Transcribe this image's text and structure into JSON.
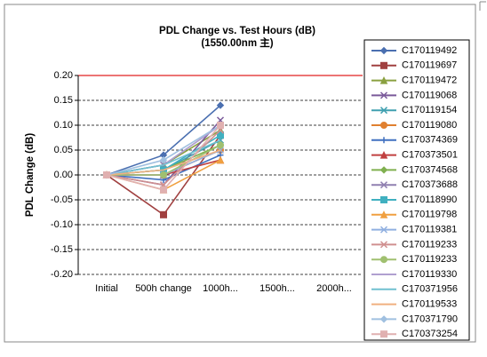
{
  "chart_data": {
    "type": "line",
    "title": "PDL Change vs.  Test Hours (dB)",
    "subtitle": "(1550.00nm 主)",
    "y_label": "PDL  Change (dB)",
    "categories": [
      "Initial",
      "500h change",
      "1000h...",
      "1500h...",
      "2000h..."
    ],
    "ylim": [
      -0.2,
      0.2
    ],
    "yticks": [
      {
        "value": 0.2,
        "label": "0.20"
      },
      {
        "value": 0.15,
        "label": "0.15"
      },
      {
        "value": 0.1,
        "label": "0.10"
      },
      {
        "value": 0.05,
        "label": "0.05"
      },
      {
        "value": 0,
        "label": "0.00"
      },
      {
        "value": -0.05,
        "label": "-0.05"
      },
      {
        "value": -0.1,
        "label": "-0.10"
      },
      {
        "value": -0.15,
        "label": "-0.15"
      },
      {
        "value": -0.2,
        "label": "-0.20"
      }
    ],
    "grid": true,
    "legend": "right",
    "series": [
      {
        "name": "C170119492",
        "color": "#4a6fb0",
        "marker": "diamond",
        "values": [
          0,
          0.04,
          0.14,
          null,
          null
        ]
      },
      {
        "name": "C170119697",
        "color": "#a04040",
        "marker": "square",
        "values": [
          0,
          -0.08,
          0.08,
          null,
          null
        ]
      },
      {
        "name": "C170119472",
        "color": "#8aa040",
        "marker": "triangle",
        "values": [
          0,
          0.02,
          0.09,
          null,
          null
        ]
      },
      {
        "name": "C170119068",
        "color": "#7a5a9a",
        "marker": "x",
        "values": [
          0,
          -0.02,
          0.11,
          null,
          null
        ]
      },
      {
        "name": "C170119154",
        "color": "#40a0b0",
        "marker": "x",
        "values": [
          0,
          0.01,
          0.07,
          null,
          null
        ]
      },
      {
        "name": "C170119080",
        "color": "#e08030",
        "marker": "circle",
        "values": [
          0,
          0,
          0.05,
          null,
          null
        ]
      },
      {
        "name": "C170374369",
        "color": "#4070c0",
        "marker": "plus",
        "values": [
          0,
          -0.01,
          0.04,
          null,
          null
        ]
      },
      {
        "name": "C170373501",
        "color": "#c04040",
        "marker": "triangle",
        "values": [
          0,
          0,
          0.03,
          null,
          null
        ]
      },
      {
        "name": "C170374568",
        "color": "#80b050",
        "marker": "diamond",
        "values": [
          0,
          0.01,
          0.06,
          null,
          null
        ]
      },
      {
        "name": "C170373688",
        "color": "#9080b0",
        "marker": "x",
        "values": [
          0,
          0.02,
          0.1,
          null,
          null
        ]
      },
      {
        "name": "C170118990",
        "color": "#40b0c0",
        "marker": "square",
        "values": [
          0,
          0.01,
          0.08,
          null,
          null
        ]
      },
      {
        "name": "C170119798",
        "color": "#f0a040",
        "marker": "triangle",
        "values": [
          0,
          -0.03,
          0.03,
          null,
          null
        ]
      },
      {
        "name": "C170119381",
        "color": "#90b0e0",
        "marker": "x",
        "values": [
          0,
          0,
          0.05,
          null,
          null
        ]
      },
      {
        "name": "C170119233",
        "color": "#d09090",
        "marker": "x",
        "values": [
          0,
          -0.02,
          0.09,
          null,
          null
        ]
      },
      {
        "name": "C170119233",
        "color": "#a0c070",
        "marker": "circle",
        "values": [
          0,
          0,
          0.06,
          null,
          null
        ]
      },
      {
        "name": "C170119330",
        "color": "#b0a0d0",
        "marker": "none",
        "values": [
          0,
          0.02,
          0.1,
          null,
          null
        ]
      },
      {
        "name": "C170371956",
        "color": "#70c0d0",
        "marker": "none",
        "values": [
          0,
          0.02,
          0.07,
          null,
          null
        ]
      },
      {
        "name": "C170119533",
        "color": "#f0b080",
        "marker": "none",
        "values": [
          0,
          0.01,
          0.05,
          null,
          null
        ]
      },
      {
        "name": "C170371790",
        "color": "#a0c0e0",
        "marker": "diamond",
        "values": [
          0,
          0.03,
          0.1,
          null,
          null
        ]
      },
      {
        "name": "C170373254",
        "color": "#e0b0b0",
        "marker": "square",
        "values": [
          0,
          -0.03,
          0.1,
          null,
          null
        ]
      }
    ]
  }
}
